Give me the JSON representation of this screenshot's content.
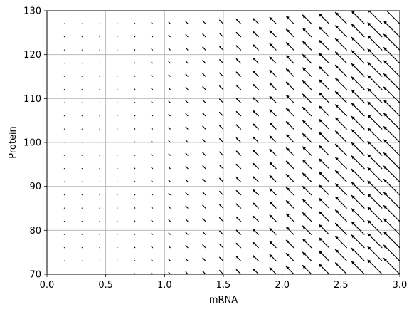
{
  "chart_data": {
    "type": "quiver",
    "xlabel": "mRNA",
    "ylabel": "Protein",
    "xlim": [
      0.0,
      3.0
    ],
    "ylim": [
      70,
      130
    ],
    "grid": true,
    "xticks": [
      0.0,
      0.5,
      1.0,
      1.5,
      2.0,
      2.5,
      3.0
    ],
    "xtick_labels": [
      "0.0",
      "0.5",
      "1.0",
      "1.5",
      "2.0",
      "2.5",
      "3.0"
    ],
    "yticks": [
      70,
      80,
      90,
      100,
      110,
      120,
      130
    ],
    "ytick_labels": [
      "70",
      "80",
      "90",
      "100",
      "110",
      "120",
      "130"
    ],
    "field": {
      "mrna_grid_start": 0.15,
      "mrna_grid_step": 0.15,
      "mrna_grid_count": 20,
      "protein_grid_start": 70,
      "protein_grid_step": 3,
      "protein_grid_count": 21,
      "production_rate": 10.0,
      "degradation_rate": 0.1,
      "arrow_color": "#000000"
    }
  }
}
